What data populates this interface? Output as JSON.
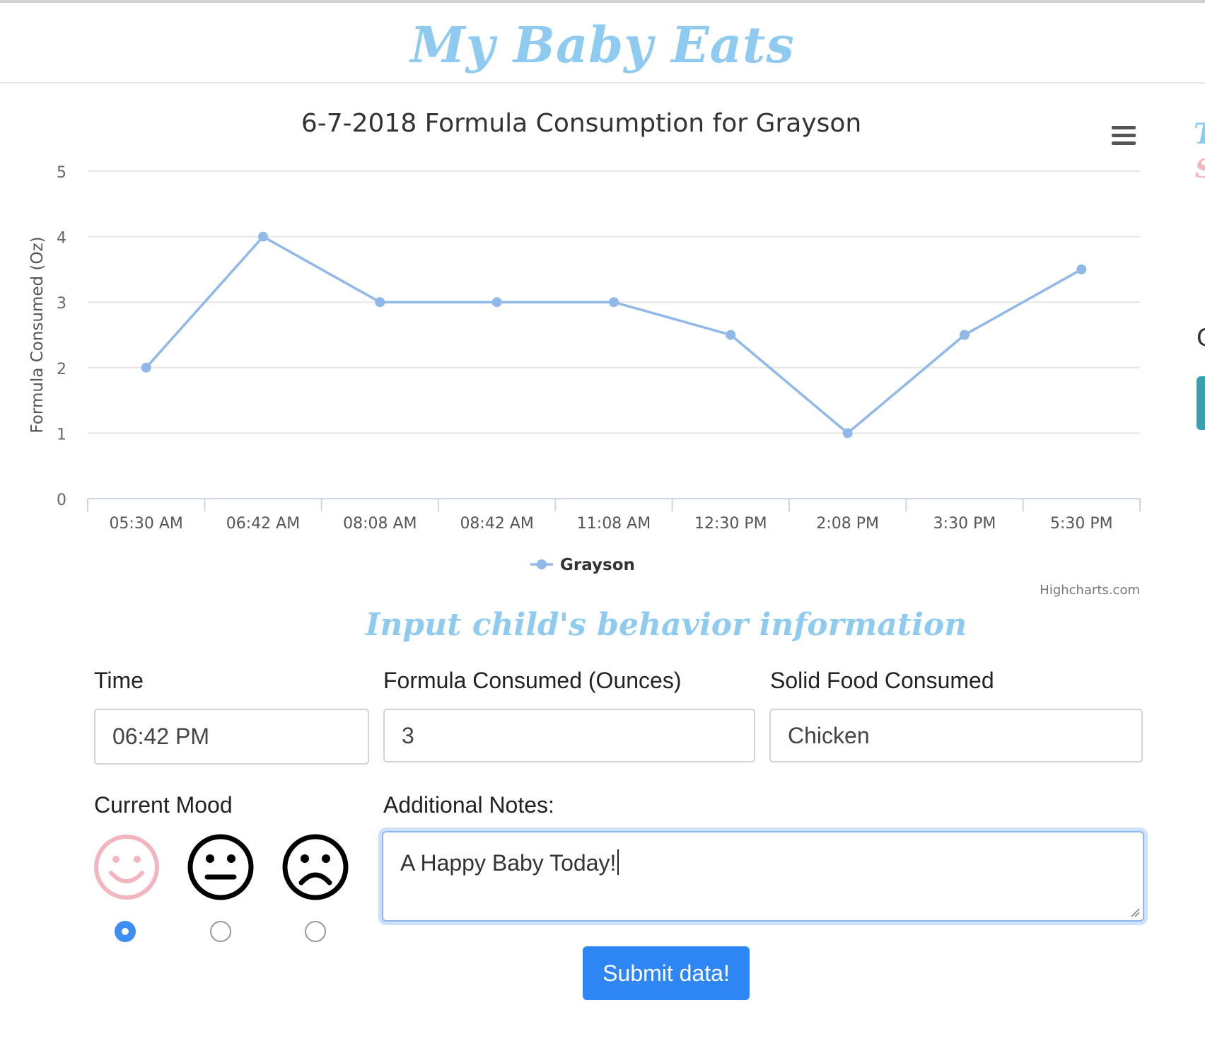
{
  "app": {
    "brand_title": "My Baby Eats"
  },
  "edge_fragments": {
    "a": "T",
    "b": "S",
    "c": "C"
  },
  "chart_data": {
    "type": "line",
    "title": "6-7-2018 Formula Consumption for Grayson",
    "ylabel": "Formula Consumed (Oz)",
    "xlabel": "",
    "categories": [
      "05:30 AM",
      "06:42 AM",
      "08:08 AM",
      "08:42 AM",
      "11:08 AM",
      "12:30 PM",
      "2:08 PM",
      "3:30 PM",
      "5:30 PM"
    ],
    "series": [
      {
        "name": "Grayson",
        "values": [
          2,
          4,
          3,
          3,
          3,
          2.5,
          1,
          2.5,
          3.5
        ],
        "color": "#90b8e8"
      }
    ],
    "ylim": [
      0,
      5
    ],
    "yticks": [
      0,
      1,
      2,
      3,
      4,
      5
    ],
    "grid": true,
    "legend": "bottom-center",
    "credits": "Highcharts.com"
  },
  "form": {
    "section_title": "Input child's behavior information",
    "time_label": "Time",
    "time_value": "06:42 PM",
    "formula_label": "Formula Consumed (Ounces)",
    "formula_value": "3",
    "solid_label": "Solid Food Consumed",
    "solid_value": "Chicken",
    "mood_label": "Current Mood",
    "mood_options": [
      "happy",
      "neutral",
      "sad"
    ],
    "mood_selected": "happy",
    "notes_label": "Additional Notes:",
    "notes_value": "A Happy Baby Today!",
    "submit_label": "Submit data!"
  },
  "colors": {
    "accent": "#8fcbf0",
    "pink": "#f3b6c0",
    "button": "#2e86f4",
    "series": "#90b8e8"
  }
}
